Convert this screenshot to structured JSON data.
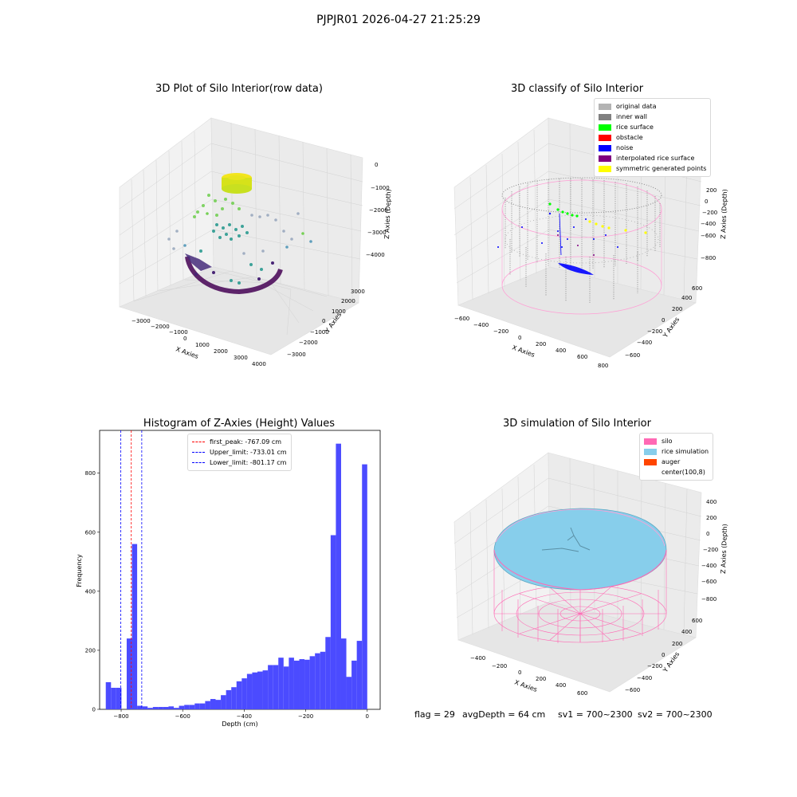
{
  "figure": {
    "suptitle": "PJPJR01 2026-04-27 21:25:29"
  },
  "panel_raw": {
    "title": "3D Plot of Silo Interior(row data)",
    "xlabel": "X Axies",
    "ylabel": "Y Axies",
    "zlabel": "Z Axies (Depth)",
    "xticks": [
      "−3000",
      "−2000",
      "−1000",
      "0",
      "1000",
      "2000",
      "3000",
      "4000"
    ],
    "yticks": [
      "3000",
      "2000",
      "1000",
      "0",
      "−1000",
      "−2000",
      "−3000"
    ],
    "zticks": [
      "0",
      "−1000",
      "−2000",
      "−3000",
      "−4000"
    ]
  },
  "panel_classify": {
    "title": "3D classify of Silo Interior",
    "xlabel": "X Axies",
    "ylabel": "Y Axies",
    "zlabel": "Z Axies (Depth)",
    "xticks": [
      "−600",
      "−400",
      "−200",
      "0",
      "200",
      "400",
      "600",
      "800"
    ],
    "yticks": [
      "600",
      "400",
      "200",
      "0",
      "−200",
      "−400",
      "−600"
    ],
    "zticks": [
      "200",
      "0",
      "−200",
      "−400",
      "−600",
      "−800"
    ],
    "legend": [
      {
        "label": "original data",
        "color": "#b3b3b3"
      },
      {
        "label": "inner wall",
        "color": "#808080"
      },
      {
        "label": "rice surface",
        "color": "#00ff00"
      },
      {
        "label": "obstacle",
        "color": "#ff0000"
      },
      {
        "label": "noise",
        "color": "#0000ff"
      },
      {
        "label": "interpolated rice surface",
        "color": "#800080"
      },
      {
        "label": "symmetric generated points",
        "color": "#ffff00"
      }
    ]
  },
  "panel_sim": {
    "title": "3D simulation of Silo Interior",
    "xlabel": "X Axies",
    "ylabel": "Y Axies",
    "zlabel": "Z Axies (Depth)",
    "xticks": [
      "−400",
      "−200",
      "0",
      "200",
      "400",
      "600"
    ],
    "yticks": [
      "600",
      "400",
      "200",
      "0",
      "−200",
      "−400",
      "−600"
    ],
    "zticks": [
      "400",
      "200",
      "0",
      "−200",
      "−400",
      "−600",
      "−800"
    ],
    "legend": [
      {
        "label": "silo",
        "color": "#ff69b4"
      },
      {
        "label": "rice simulation",
        "color": "#87ceeb"
      },
      {
        "label": "auger",
        "color": "#ff4500"
      },
      {
        "label": "center(100,8)",
        "color": "#ffffff"
      }
    ]
  },
  "status": {
    "flag": "flag = 29",
    "avg": "avgDepth = 64 cm",
    "sv1": "sv1 = 700~2300",
    "sv2": "sv2 = 700~2300"
  },
  "chart_data": {
    "type": "bar",
    "title": "Histogram of Z-Axies (Height) Values",
    "xlabel": "Depth (cm)",
    "ylabel": "Frequency",
    "bin_start": -850,
    "bin_width": 17,
    "values": [
      92,
      73,
      73,
      0,
      240,
      560,
      12,
      10,
      5,
      8,
      8,
      8,
      10,
      5,
      12,
      15,
      15,
      20,
      20,
      28,
      35,
      32,
      48,
      65,
      75,
      95,
      105,
      120,
      125,
      128,
      132,
      150,
      150,
      175,
      145,
      175,
      165,
      170,
      168,
      180,
      190,
      195,
      245,
      590,
      900,
      240,
      110,
      165,
      232,
      830
    ],
    "xlim": [
      -870,
      42
    ],
    "ylim": [
      0,
      945
    ],
    "xticks": [
      {
        "value": -800,
        "label": "−800"
      },
      {
        "value": -600,
        "label": "−600"
      },
      {
        "value": -400,
        "label": "−400"
      },
      {
        "value": -200,
        "label": "−200"
      },
      {
        "value": 0,
        "label": "0"
      }
    ],
    "yticks": [
      {
        "value": 0,
        "label": "0"
      },
      {
        "value": 200,
        "label": "200"
      },
      {
        "value": 400,
        "label": "400"
      },
      {
        "value": 600,
        "label": "600"
      },
      {
        "value": 800,
        "label": "800"
      }
    ],
    "bar_color": "#4b4bff",
    "vlines": [
      {
        "label": "first_peak: -767.09 cm",
        "value": -767.09,
        "color": "#ff0000"
      },
      {
        "label": "Upper_limit: -733.01 cm",
        "value": -733.01,
        "color": "#0000ff"
      },
      {
        "label": "Lower_limit: -801.17 cm",
        "value": -801.17,
        "color": "#0000ff"
      }
    ],
    "legend_position": "upper center"
  }
}
